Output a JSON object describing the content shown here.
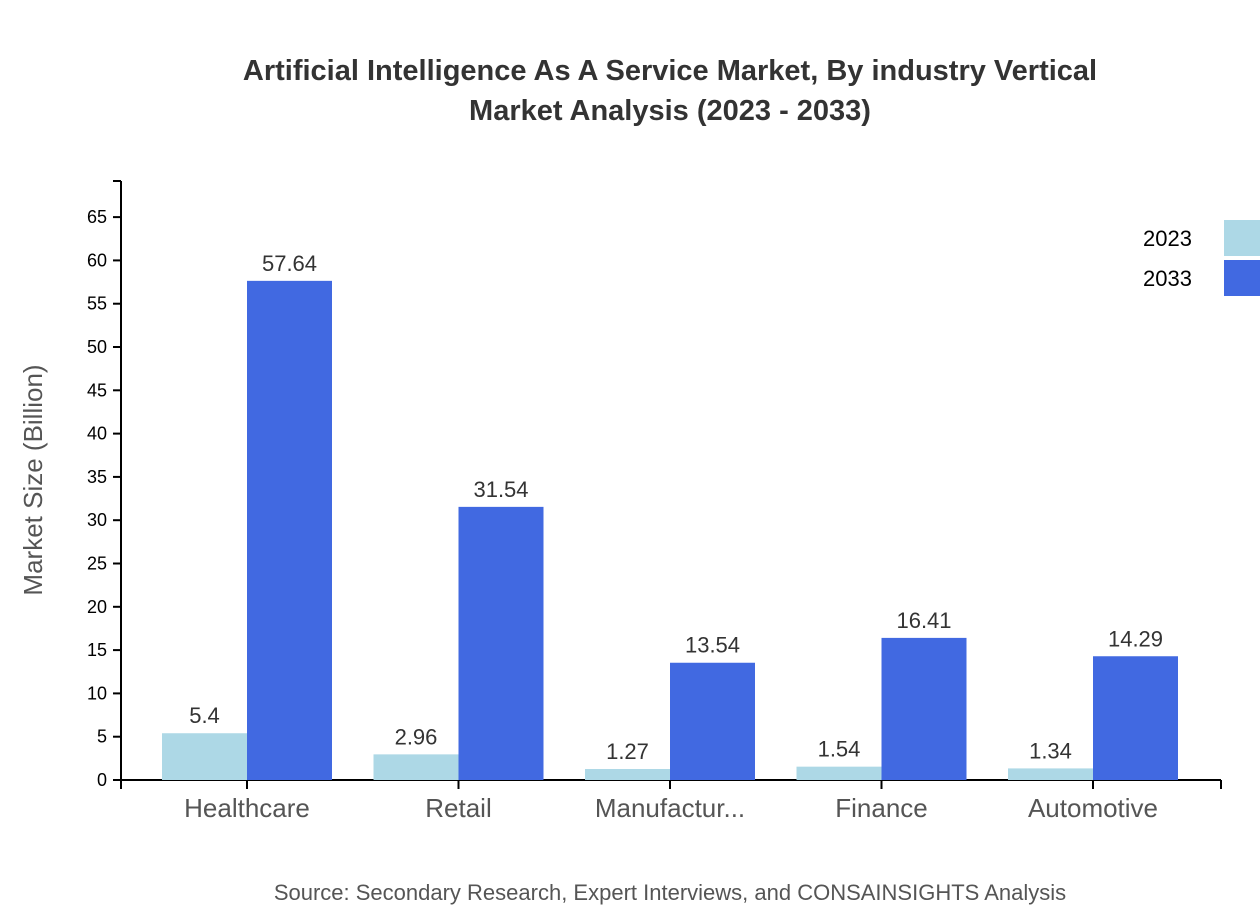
{
  "chart_data": {
    "type": "bar",
    "title_line1": "Artificial Intelligence As A Service Market, By industry Vertical",
    "title_line2": "Market Analysis (2023 - 2033)",
    "xlabel": "",
    "ylabel": "Market Size (Billion)",
    "ylim": [
      0,
      69.17
    ],
    "yticks": [
      0,
      5,
      10,
      15,
      20,
      25,
      30,
      35,
      40,
      45,
      50,
      55,
      60,
      65
    ],
    "categories": [
      "Healthcare",
      "Retail",
      "Manufactur...",
      "Finance",
      "Automotive"
    ],
    "series": [
      {
        "name": "2023",
        "color": "#add8e6",
        "values": [
          5.4,
          2.96,
          1.27,
          1.54,
          1.34
        ]
      },
      {
        "name": "2033",
        "color": "#4169e1",
        "values": [
          57.64,
          31.54,
          13.54,
          16.41,
          14.29
        ]
      }
    ],
    "legend_position": "top-right",
    "grid": false,
    "source": "Source: Secondary Research, Expert Interviews, and CONSAINSIGHTS Analysis"
  }
}
